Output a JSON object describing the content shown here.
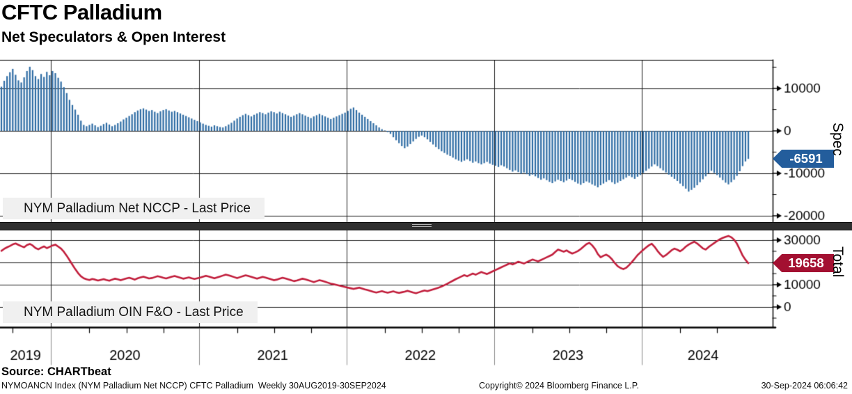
{
  "header": {
    "title": "CFTC Palladium",
    "subtitle": "Net Speculators & Open Interest"
  },
  "source_line": "Source: CHARTbeat",
  "footer": {
    "left": "NYMOANCN Index (NYM Palladium Net NCCP) CFTC Palladium  Weekly 30AUG2019-30SEP2024",
    "center": "Copyright© 2024 Bloomberg Finance L.P.",
    "right": "30-Sep-2024 06:06:42"
  },
  "chart_data": [
    {
      "type": "bar",
      "panel": "top",
      "legend": "NYM Palladium Net NCCP - Last Price",
      "axis_title": "Spec",
      "color": "#2e6ca4",
      "tag_color": "#235d9c",
      "last_price": -6591,
      "last_label": "-6591",
      "ylim": [
        -21500,
        16700
      ],
      "yticks": [
        10000,
        0,
        -10000,
        -20000
      ],
      "yticks_minor": [
        15000,
        5000,
        -5000,
        -15000
      ],
      "x_years": [
        "2019",
        "2020",
        "2021",
        "2022",
        "2023",
        "2024"
      ],
      "x_range": "Weekly 30AUG2019-30SEP2024",
      "grid": true,
      "legend_position": "bottom-left",
      "weekly_values": [
        10400,
        11800,
        12900,
        13800,
        14600,
        13200,
        11900,
        11400,
        12600,
        14100,
        15100,
        14300,
        12900,
        12200,
        13400,
        12700,
        13900,
        13100,
        14100,
        13600,
        12500,
        11600,
        10300,
        8900,
        7300,
        6100,
        5000,
        3800,
        2400,
        1400,
        1100,
        1400,
        1700,
        1300,
        900,
        1200,
        1600,
        1900,
        1500,
        1100,
        1400,
        1800,
        2200,
        2700,
        3100,
        3500,
        3900,
        4400,
        4800,
        5100,
        5300,
        5000,
        4700,
        4900,
        4500,
        4200,
        4600,
        4900,
        5100,
        4800,
        4500,
        4700,
        4400,
        4100,
        3800,
        3500,
        3200,
        2900,
        2600,
        2300,
        2000,
        1700,
        1400,
        1200,
        1000,
        1300,
        1100,
        900,
        800,
        1100,
        1500,
        1900,
        2400,
        2900,
        3300,
        3700,
        4000,
        3700,
        3400,
        3800,
        4100,
        4400,
        4200,
        3900,
        4300,
        4600,
        4400,
        4100,
        4500,
        4200,
        3900,
        3600,
        3300,
        3600,
        3900,
        4200,
        3900,
        3600,
        3300,
        3000,
        3400,
        3700,
        4000,
        3700,
        3400,
        3100,
        2800,
        3100,
        3400,
        3700,
        4000,
        4300,
        4700,
        5200,
        5500,
        4900,
        4300,
        3800,
        3300,
        2800,
        2300,
        1800,
        1300,
        800,
        400,
        100,
        -300,
        -700,
        -1500,
        -2200,
        -2900,
        -3600,
        -4100,
        -3700,
        -3100,
        -2500,
        -1900,
        -1400,
        -1100,
        -1500,
        -2000,
        -2600,
        -3200,
        -3800,
        -4300,
        -4800,
        -5200,
        -5600,
        -5900,
        -6300,
        -6700,
        -7000,
        -7300,
        -7000,
        -6700,
        -7100,
        -7500,
        -7200,
        -7600,
        -7900,
        -7600,
        -7300,
        -7700,
        -8000,
        -8200,
        -8500,
        -8100,
        -8400,
        -8800,
        -9200,
        -9600,
        -9300,
        -9700,
        -10100,
        -9800,
        -10200,
        -10600,
        -10300,
        -10700,
        -11100,
        -11500,
        -11200,
        -11600,
        -12000,
        -12300,
        -11900,
        -11500,
        -11800,
        -12100,
        -11700,
        -11300,
        -11600,
        -12000,
        -12400,
        -12700,
        -12300,
        -11900,
        -12200,
        -12600,
        -12900,
        -13300,
        -12800,
        -12400,
        -12000,
        -11600,
        -12100,
        -12500,
        -12200,
        -11800,
        -11400,
        -11000,
        -10600,
        -10900,
        -11300,
        -10800,
        -10400,
        -9900,
        -9400,
        -8900,
        -8400,
        -7900,
        -8300,
        -8800,
        -9300,
        -9800,
        -10300,
        -10800,
        -11300,
        -11800,
        -12400,
        -13000,
        -13600,
        -14300,
        -13900,
        -13400,
        -12800,
        -12100,
        -11400,
        -10700,
        -10000,
        -9400,
        -9900,
        -10400,
        -11000,
        -11600,
        -12200,
        -12600,
        -12100,
        -11500,
        -10600,
        -9500,
        -8300,
        -7200,
        -6591
      ]
    },
    {
      "type": "line",
      "panel": "bottom",
      "legend": "NYM Palladium OIN F&O - Last Price",
      "axis_title": "Total",
      "color": "#c11d3b",
      "tag_color": "#a31031",
      "last_price": 19658,
      "last_label": "19658",
      "ylim": [
        -9000,
        34000
      ],
      "yticks": [
        30000,
        20000,
        10000,
        0
      ],
      "yticks_minor": [
        25000,
        15000,
        5000,
        -5000
      ],
      "x_years": [
        "2019",
        "2020",
        "2021",
        "2022",
        "2023",
        "2024"
      ],
      "x_range": "Weekly 30AUG2019-30SEP2024",
      "grid": true,
      "legend_position": "bottom-left",
      "weekly_values": [
        25200,
        26100,
        26800,
        27400,
        28100,
        28500,
        27900,
        27300,
        26800,
        27800,
        28300,
        27600,
        26500,
        25900,
        26600,
        27200,
        26400,
        27000,
        27600,
        28000,
        27100,
        26200,
        24800,
        23000,
        21000,
        19000,
        17000,
        15200,
        13800,
        12900,
        12400,
        12100,
        12600,
        12300,
        11900,
        12200,
        12500,
        12100,
        11800,
        12300,
        12700,
        12400,
        12000,
        12400,
        12800,
        13100,
        12700,
        12300,
        12900,
        13300,
        13600,
        13200,
        12800,
        13000,
        13400,
        13800,
        13500,
        13100,
        12800,
        13200,
        13600,
        13900,
        13500,
        13100,
        12700,
        13000,
        13300,
        12900,
        12600,
        12900,
        13200,
        13600,
        14000,
        13700,
        13300,
        12900,
        13300,
        13700,
        14100,
        14500,
        14200,
        13800,
        13400,
        13000,
        13400,
        13800,
        14200,
        13900,
        13500,
        13100,
        12700,
        13100,
        13500,
        13200,
        12800,
        12400,
        12000,
        12300,
        12700,
        13100,
        12800,
        12400,
        12000,
        11600,
        11900,
        12300,
        12700,
        12400,
        12000,
        11600,
        11200,
        11600,
        12000,
        11700,
        11300,
        10900,
        10500,
        10200,
        9900,
        9600,
        9300,
        9000,
        8700,
        8400,
        8100,
        8400,
        8700,
        8300,
        7900,
        7600,
        7200,
        6800,
        6500,
        6800,
        7100,
        6700,
        6400,
        6700,
        7000,
        6600,
        6300,
        6600,
        6900,
        7300,
        6900,
        6500,
        6200,
        6600,
        7000,
        7400,
        7100,
        7500,
        7900,
        8300,
        8700,
        9200,
        9800,
        10400,
        11100,
        11800,
        12500,
        13100,
        13700,
        14300,
        13800,
        14400,
        15000,
        14500,
        15100,
        15700,
        15200,
        14800,
        15400,
        16000,
        16600,
        17200,
        17800,
        18400,
        19000,
        19600,
        19100,
        19700,
        20300,
        19900,
        19500,
        20100,
        20700,
        21300,
        20900,
        20500,
        21100,
        21700,
        22300,
        22900,
        23500,
        24700,
        25800,
        25300,
        24800,
        25400,
        24600,
        24000,
        24500,
        25100,
        26000,
        27100,
        28200,
        28800,
        27700,
        26100,
        23800,
        22300,
        23000,
        23500,
        22700,
        21400,
        19700,
        18300,
        17500,
        17000,
        17600,
        18800,
        20200,
        21700,
        23300,
        24500,
        25600,
        26700,
        27700,
        28400,
        27000,
        25200,
        23700,
        22500,
        23300,
        24400,
        25500,
        26200,
        25700,
        25000,
        25900,
        27100,
        28000,
        28700,
        29300,
        28500,
        27400,
        26300,
        25800,
        26900,
        27800,
        28700,
        29600,
        30400,
        31000,
        31500,
        31900,
        31300,
        30200,
        28400,
        25800,
        23100,
        21200,
        19658
      ]
    }
  ]
}
